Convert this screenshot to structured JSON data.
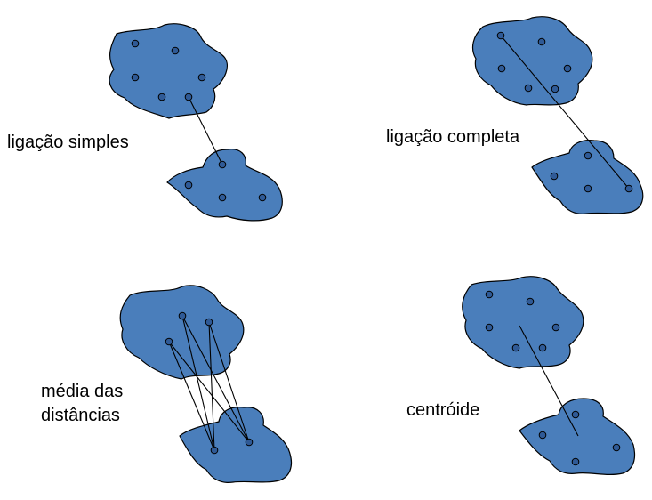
{
  "panels": [
    {
      "id": "single",
      "label_lines": [
        "ligação simples"
      ]
    },
    {
      "id": "complete",
      "label_lines": [
        "ligação completa"
      ]
    },
    {
      "id": "average",
      "label_lines": [
        "média das",
        "distâncias"
      ]
    },
    {
      "id": "centroid",
      "label_lines": [
        "centróide"
      ]
    }
  ],
  "colors": {
    "cluster_fill": "#4a7ebb",
    "point_fill": "#2f5a96",
    "stroke": "#000000"
  }
}
